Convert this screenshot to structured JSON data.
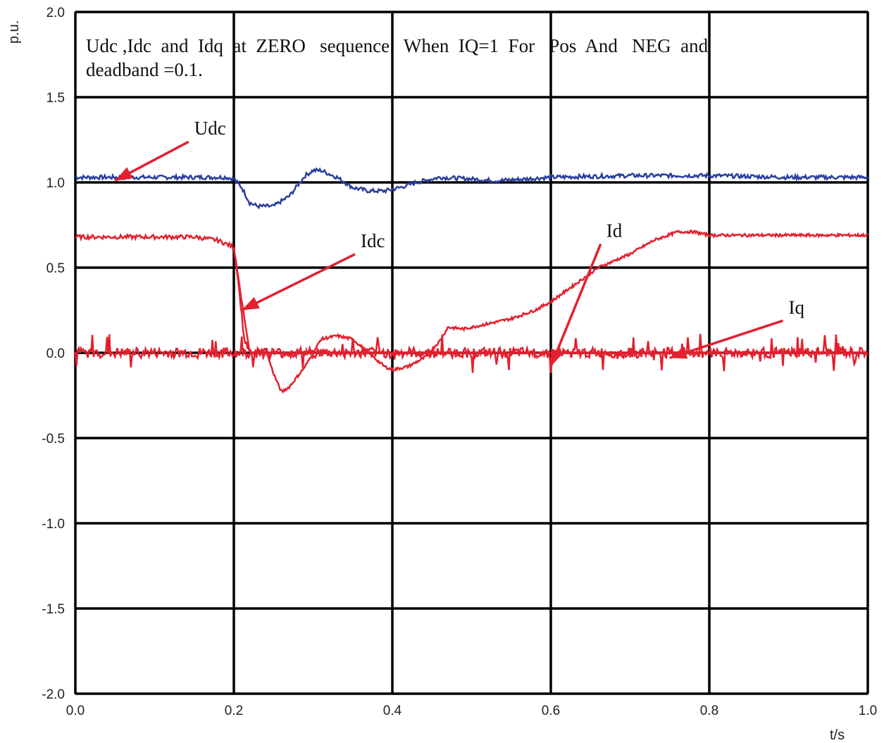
{
  "chart_data": {
    "type": "line",
    "annotation_lines": [
      "Udc ,Idc  and  Idq  at  ZERO   sequence.  When  IQ=1  For   Pos  And   NEG  and",
      "deadband =0.1."
    ],
    "ylabel": "p.u.",
    "xlabel": "t/s",
    "xlim": [
      0.0,
      1.0
    ],
    "ylim": [
      -2.0,
      2.0
    ],
    "x_ticks": [
      "0.0",
      "0.2",
      "0.4",
      "0.6",
      "0.8",
      "1.0"
    ],
    "y_ticks": [
      "2.0",
      "1.5",
      "1.0",
      "0.5",
      "0.0",
      "-0.5",
      "-1.0",
      "-1.5",
      "-2.0"
    ],
    "grid": true,
    "series": [
      {
        "name": "Udc",
        "color": "#2a3f9e",
        "points": [
          [
            0.0,
            1.03
          ],
          [
            0.19,
            1.03
          ],
          [
            0.2,
            1.02
          ],
          [
            0.21,
            0.97
          ],
          [
            0.22,
            0.88
          ],
          [
            0.23,
            0.86
          ],
          [
            0.25,
            0.86
          ],
          [
            0.27,
            0.92
          ],
          [
            0.29,
            1.04
          ],
          [
            0.3,
            1.07
          ],
          [
            0.31,
            1.07
          ],
          [
            0.33,
            1.03
          ],
          [
            0.35,
            0.97
          ],
          [
            0.37,
            0.95
          ],
          [
            0.39,
            0.95
          ],
          [
            0.41,
            0.97
          ],
          [
            0.43,
            1.0
          ],
          [
            0.46,
            1.03
          ],
          [
            0.5,
            1.02
          ],
          [
            0.53,
            1.01
          ],
          [
            0.57,
            1.02
          ],
          [
            0.6,
            1.03
          ],
          [
            0.7,
            1.04
          ],
          [
            0.8,
            1.04
          ],
          [
            0.9,
            1.03
          ],
          [
            1.0,
            1.03
          ]
        ]
      },
      {
        "name": "Idc",
        "color": "#e3202f",
        "points": [
          [
            0.0,
            0.68
          ],
          [
            0.15,
            0.68
          ],
          [
            0.18,
            0.66
          ],
          [
            0.2,
            0.62
          ],
          [
            0.205,
            0.45
          ],
          [
            0.21,
            0.22
          ],
          [
            0.213,
            0.08
          ],
          [
            0.22,
            0.0
          ],
          [
            0.3,
            0.0
          ],
          [
            0.4,
            0.0
          ],
          [
            0.45,
            0.0
          ],
          [
            0.5,
            0.0
          ],
          [
            0.6,
            0.0
          ],
          [
            0.7,
            0.0
          ],
          [
            0.8,
            0.0
          ],
          [
            0.9,
            0.0
          ],
          [
            1.0,
            0.0
          ]
        ]
      },
      {
        "name": "Id",
        "color": "#e3202f",
        "points": [
          [
            0.2,
            0.62
          ],
          [
            0.21,
            0.3
          ],
          [
            0.22,
            0.0
          ],
          [
            0.24,
            0.02
          ],
          [
            0.25,
            -0.12
          ],
          [
            0.26,
            -0.23
          ],
          [
            0.27,
            -0.2
          ],
          [
            0.29,
            -0.08
          ],
          [
            0.31,
            0.08
          ],
          [
            0.33,
            0.1
          ],
          [
            0.35,
            0.08
          ],
          [
            0.37,
            0.0
          ],
          [
            0.39,
            -0.08
          ],
          [
            0.4,
            -0.1
          ],
          [
            0.42,
            -0.08
          ],
          [
            0.44,
            -0.03
          ],
          [
            0.46,
            0.07
          ],
          [
            0.47,
            0.15
          ],
          [
            0.49,
            0.14
          ],
          [
            0.52,
            0.17
          ],
          [
            0.55,
            0.2
          ],
          [
            0.58,
            0.25
          ],
          [
            0.6,
            0.3
          ],
          [
            0.63,
            0.4
          ],
          [
            0.66,
            0.5
          ],
          [
            0.7,
            0.58
          ],
          [
            0.73,
            0.66
          ],
          [
            0.76,
            0.71
          ],
          [
            0.78,
            0.71
          ],
          [
            0.8,
            0.69
          ],
          [
            0.9,
            0.69
          ],
          [
            1.0,
            0.69
          ]
        ]
      },
      {
        "name": "Iq",
        "color": "#e3202f",
        "points": [
          [
            0.0,
            0.0
          ],
          [
            0.2,
            0.0
          ],
          [
            0.4,
            0.0
          ],
          [
            0.6,
            0.0
          ],
          [
            0.8,
            0.0
          ],
          [
            1.0,
            0.0
          ]
        ]
      }
    ],
    "labels": [
      {
        "text": "Udc",
        "x": 0.15,
        "y": 1.28,
        "arrow_to": [
          0.05,
          1.01
        ]
      },
      {
        "text": "Idc",
        "x": 0.36,
        "y": 0.62,
        "arrow_to": [
          0.21,
          0.25
        ]
      },
      {
        "text": "Id",
        "x": 0.67,
        "y": 0.68,
        "arrow_to": [
          0.6,
          -0.08
        ]
      },
      {
        "text": "Iq",
        "x": 0.9,
        "y": 0.23,
        "arrow_to": [
          0.75,
          -0.03
        ]
      }
    ]
  }
}
